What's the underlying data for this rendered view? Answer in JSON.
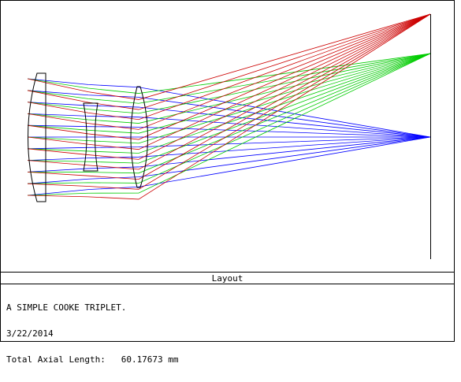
{
  "plot": {
    "title": "Layout",
    "description_lines": [
      "A SIMPLE COOKE TRIPLET.",
      "3/22/2014",
      "Total Axial Length:   60.17673 mm"
    ],
    "colors": {
      "field_on_axis": "#0000ff",
      "field_mid": "#00cc00",
      "field_edge": "#cc0000",
      "lens_outline": "#000000",
      "image_plane": "#000000"
    },
    "fields": [
      {
        "id": "on-axis",
        "color": "#0000ff"
      },
      {
        "id": "mid-field",
        "color": "#00cc00"
      },
      {
        "id": "edge-field",
        "color": "#cc0000"
      }
    ],
    "elements": [
      "positive-front-lens",
      "negative-middle-lens",
      "positive-rear-lens"
    ]
  }
}
